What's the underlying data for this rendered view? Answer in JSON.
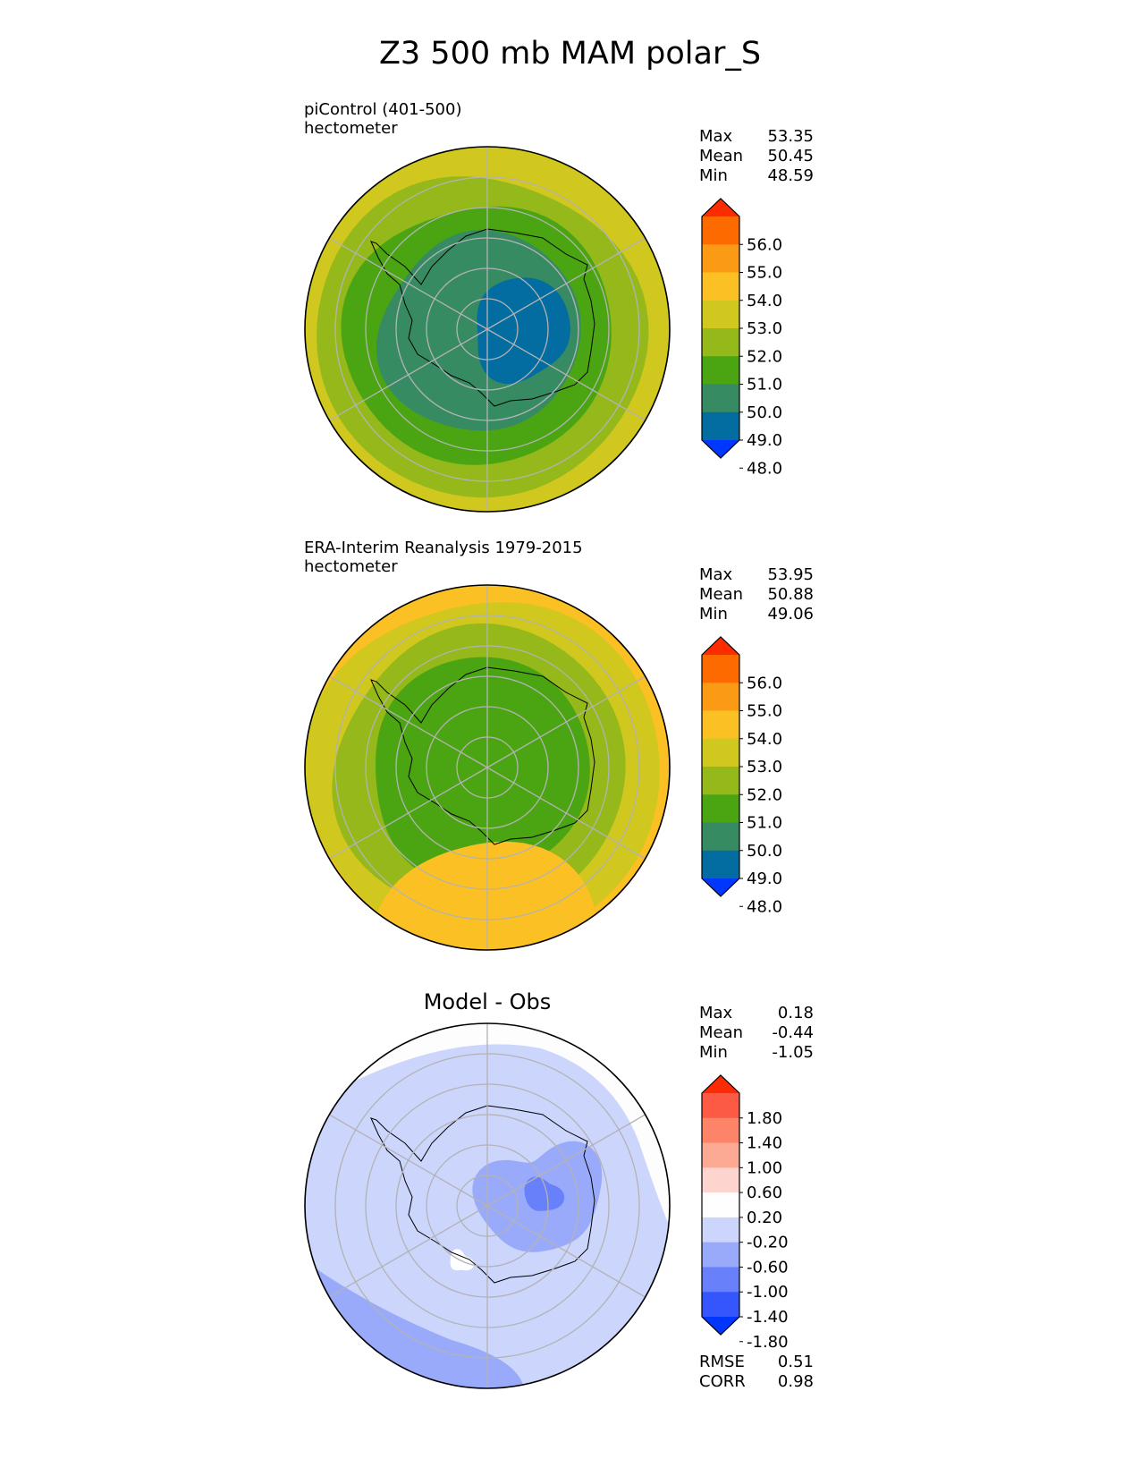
{
  "title": "Z3 500 mb MAM polar_S",
  "chart_data": [
    {
      "type": "heatmap",
      "projection": "south polar stereographic",
      "label_line1": "piControl (401-500)",
      "label_line2": "hectometer",
      "stats": {
        "max_label": "Max",
        "max": "53.35",
        "mean_label": "Mean",
        "mean": "50.45",
        "min_label": "Min",
        "min": "48.59"
      },
      "colorbar": {
        "ticks": [
          "56.0",
          "55.0",
          "54.0",
          "53.0",
          "52.0",
          "51.0",
          "50.0",
          "49.0",
          "48.0"
        ],
        "colors": [
          "#fc2b00",
          "#fd6b00",
          "#fb9a14",
          "#fbc023",
          "#d0c71f",
          "#95b81a",
          "#4ba512",
          "#378b63",
          "#036ca0",
          "#0037fe"
        ],
        "extend": "both"
      },
      "field_rings_outer_to_inner": [
        "#d0c71f",
        "#95b81a",
        "#4ba512",
        "#378b63",
        "#036ca0"
      ],
      "data_range": [
        48.59,
        53.35
      ]
    },
    {
      "type": "heatmap",
      "projection": "south polar stereographic",
      "label_line1": "ERA-Interim Reanalysis 1979-2015",
      "label_line2": "hectometer",
      "stats": {
        "max_label": "Max",
        "max": "53.95",
        "mean_label": "Mean",
        "mean": "50.88",
        "min_label": "Min",
        "min": "49.06"
      },
      "colorbar": {
        "ticks": [
          "56.0",
          "55.0",
          "54.0",
          "53.0",
          "52.0",
          "51.0",
          "50.0",
          "49.0",
          "48.0"
        ],
        "colors": [
          "#fc2b00",
          "#fd6b00",
          "#fb9a14",
          "#fbc023",
          "#d0c71f",
          "#95b81a",
          "#4ba512",
          "#378b63",
          "#036ca0",
          "#0037fe"
        ],
        "extend": "both"
      },
      "field_rings_outer_to_inner": [
        "#fbc023",
        "#d0c71f",
        "#95b81a",
        "#4ba512",
        "#378b63"
      ],
      "data_range": [
        49.06,
        53.95
      ]
    },
    {
      "type": "heatmap",
      "projection": "south polar stereographic",
      "title": "Model - Obs",
      "stats": {
        "max_label": "Max",
        "max": "0.18",
        "mean_label": "Mean",
        "mean": "-0.44",
        "min_label": "Min",
        "min": "-1.05"
      },
      "colorbar": {
        "ticks": [
          "1.80",
          "1.40",
          "1.00",
          "0.60",
          "0.20",
          "-0.20",
          "-0.60",
          "-1.00",
          "-1.40",
          "-1.80"
        ],
        "colors": [
          "#fd2b03",
          "#fd5a46",
          "#fd8369",
          "#fdaa94",
          "#fdd4ce",
          "#fefefe",
          "#ccd5fc",
          "#9aaafb",
          "#6880fa",
          "#3656fd",
          "#0036fe"
        ],
        "extend": "both"
      },
      "metrics": {
        "rmse_label": "RMSE",
        "rmse": "0.51",
        "corr_label": "CORR",
        "corr": "0.98"
      },
      "data_range": [
        -1.05,
        0.18
      ]
    }
  ],
  "colors": {
    "grid": "#b3b3b3",
    "coast": "#000000",
    "land_outline": "#000000",
    "plain": "#ffffff"
  }
}
